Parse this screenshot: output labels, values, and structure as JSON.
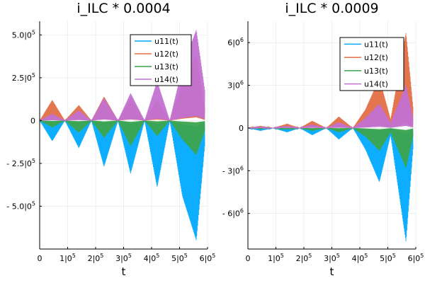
{
  "chart_data": [
    {
      "type": "line",
      "title": "i_ILC * 0.0004",
      "xlabel": "t",
      "ylabel": "",
      "xlim": [
        0,
        600000
      ],
      "ylim": [
        -750000,
        580000
      ],
      "xticks": [
        {
          "value": 0,
          "label": "0",
          "exp": ""
        },
        {
          "value": 100000,
          "label": "1|0",
          "exp": "5"
        },
        {
          "value": 200000,
          "label": "2|0",
          "exp": "5"
        },
        {
          "value": 300000,
          "label": "3|0",
          "exp": "5"
        },
        {
          "value": 400000,
          "label": "4|0",
          "exp": "5"
        },
        {
          "value": 500000,
          "label": "5|0",
          "exp": "5"
        },
        {
          "value": 600000,
          "label": "6|0",
          "exp": "5"
        }
      ],
      "yticks": [
        {
          "value": 500000,
          "label": "5.0|0",
          "exp": "5"
        },
        {
          "value": 250000,
          "label": "2.5|0",
          "exp": "5"
        },
        {
          "value": 0,
          "label": "0",
          "exp": ""
        },
        {
          "value": -250000,
          "label": "- 2.5|0",
          "exp": "5"
        },
        {
          "value": -500000,
          "label": "- 5.0|0",
          "exp": "5"
        }
      ],
      "grid": true,
      "legend_position": "top-right",
      "series": [
        {
          "name": "u11(t)",
          "color": "#00a9ff",
          "envelope_x": [
            0,
            45000,
            90000,
            140000,
            185000,
            230000,
            280000,
            325000,
            375000,
            420000,
            465000,
            510000,
            560000,
            590000
          ],
          "envelope_y": [
            0,
            -120000,
            0,
            -160000,
            0,
            -270000,
            0,
            -310000,
            0,
            -390000,
            0,
            -440000,
            -700000,
            -150000
          ]
        },
        {
          "name": "u12(t)",
          "color": "#e26f46",
          "envelope_x": [
            0,
            45000,
            90000,
            140000,
            185000,
            230000,
            280000,
            325000,
            375000,
            420000,
            465000,
            510000,
            560000,
            590000
          ],
          "envelope_y": [
            0,
            120000,
            0,
            90000,
            0,
            140000,
            0,
            130000,
            0,
            120000,
            0,
            220000,
            380000,
            80000
          ]
        },
        {
          "name": "u13(t)",
          "color": "#3da44d",
          "envelope_x": [
            0,
            45000,
            90000,
            140000,
            185000,
            230000,
            280000,
            325000,
            375000,
            420000,
            465000,
            510000,
            560000,
            590000
          ],
          "envelope_y": [
            0,
            -40000,
            0,
            -70000,
            0,
            -100000,
            0,
            -150000,
            0,
            -90000,
            0,
            -110000,
            -200000,
            -60000
          ]
        },
        {
          "name": "u14(t)",
          "color": "#c271d2",
          "envelope_x": [
            0,
            45000,
            90000,
            140000,
            185000,
            230000,
            280000,
            325000,
            375000,
            420000,
            465000,
            510000,
            560000,
            590000
          ],
          "envelope_y": [
            0,
            40000,
            0,
            60000,
            0,
            130000,
            0,
            160000,
            0,
            230000,
            0,
            310000,
            530000,
            180000
          ]
        }
      ]
    },
    {
      "type": "line",
      "title": "i_ILC * 0.0009",
      "xlabel": "t",
      "ylabel": "",
      "xlim": [
        0,
        600000
      ],
      "ylim": [
        -8500000,
        7500000
      ],
      "xticks": [
        {
          "value": 0,
          "label": "0",
          "exp": ""
        },
        {
          "value": 100000,
          "label": "1|0",
          "exp": "5"
        },
        {
          "value": 200000,
          "label": "2|0",
          "exp": "5"
        },
        {
          "value": 300000,
          "label": "3|0",
          "exp": "5"
        },
        {
          "value": 400000,
          "label": "4|0",
          "exp": "5"
        },
        {
          "value": 500000,
          "label": "5|0",
          "exp": "5"
        },
        {
          "value": 600000,
          "label": "6|0",
          "exp": "5"
        }
      ],
      "yticks": [
        {
          "value": 6000000,
          "label": "6|0",
          "exp": "6"
        },
        {
          "value": 3000000,
          "label": "3|0",
          "exp": "6"
        },
        {
          "value": 0,
          "label": "0",
          "exp": ""
        },
        {
          "value": -3000000,
          "label": "- 3|0",
          "exp": "6"
        },
        {
          "value": -6000000,
          "label": "- 6|0",
          "exp": "6"
        }
      ],
      "grid": true,
      "legend_position": "top-right",
      "series": [
        {
          "name": "u11(t)",
          "color": "#00a9ff",
          "envelope_x": [
            0,
            45000,
            90000,
            140000,
            185000,
            230000,
            280000,
            325000,
            375000,
            420000,
            470000,
            510000,
            565000,
            590000
          ],
          "envelope_y": [
            0,
            -200000,
            0,
            -300000,
            0,
            -500000,
            0,
            -800000,
            0,
            -1500000,
            -3800000,
            -500000,
            -8000000,
            -1500000
          ]
        },
        {
          "name": "u12(t)",
          "color": "#e26f46",
          "envelope_x": [
            0,
            45000,
            90000,
            140000,
            185000,
            230000,
            280000,
            325000,
            375000,
            420000,
            470000,
            510000,
            565000,
            590000
          ],
          "envelope_y": [
            0,
            150000,
            0,
            300000,
            0,
            500000,
            0,
            800000,
            0,
            1300000,
            3500000,
            600000,
            6700000,
            1500000
          ]
        },
        {
          "name": "u13(t)",
          "color": "#3da44d",
          "envelope_x": [
            0,
            45000,
            90000,
            140000,
            185000,
            230000,
            280000,
            325000,
            375000,
            420000,
            470000,
            510000,
            565000,
            590000
          ],
          "envelope_y": [
            0,
            -50000,
            0,
            -100000,
            0,
            -200000,
            0,
            -300000,
            0,
            -600000,
            -1600000,
            -300000,
            -2800000,
            -600000
          ]
        },
        {
          "name": "u14(t)",
          "color": "#c271d2",
          "envelope_x": [
            0,
            45000,
            90000,
            140000,
            185000,
            230000,
            280000,
            325000,
            375000,
            420000,
            470000,
            510000,
            565000,
            590000
          ],
          "envelope_y": [
            0,
            80000,
            0,
            150000,
            0,
            250000,
            0,
            400000,
            0,
            700000,
            1700000,
            350000,
            3000000,
            700000
          ]
        }
      ]
    }
  ]
}
